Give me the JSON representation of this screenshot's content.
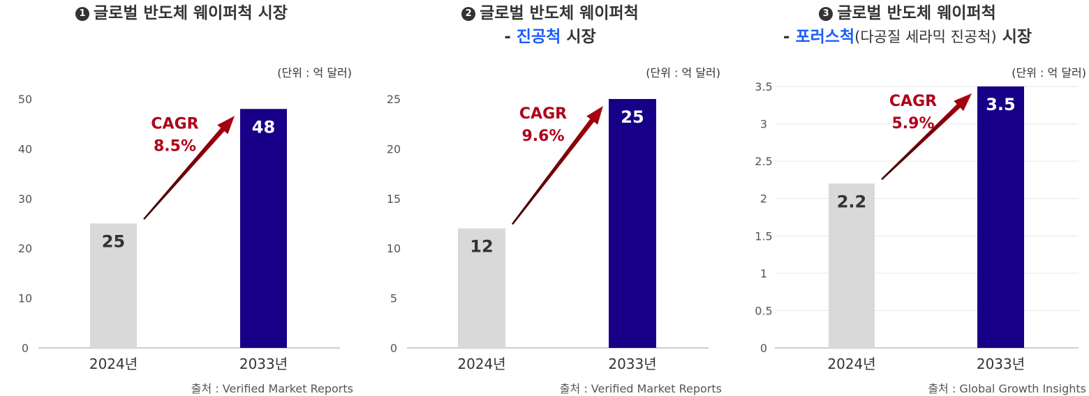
{
  "unit_label": "(단위 : 억 달러)",
  "panels": [
    {
      "badge": "1",
      "title_line1": "글로벌 반도체 웨이퍼척 시장",
      "title_line2_prefix": "",
      "title_line2_accent": "",
      "title_line2_sub": "",
      "title_line2_suffix": "",
      "source": "출처 : Verified Market Reports",
      "cagr_label": "CAGR",
      "cagr_value": "8.5%"
    },
    {
      "badge": "2",
      "title_line1": "글로벌 반도체 웨이퍼척",
      "title_line2_prefix": "- ",
      "title_line2_accent": "진공척",
      "title_line2_sub": "",
      "title_line2_suffix": " 시장",
      "source": "출처 : Verified Market Reports",
      "cagr_label": "CAGR",
      "cagr_value": "9.6%"
    },
    {
      "badge": "3",
      "title_line1": "글로벌 반도체 웨이퍼척",
      "title_line2_prefix": "- ",
      "title_line2_accent": "포러스척",
      "title_line2_sub": "(다공질 세라믹 진공척)",
      "title_line2_suffix": " 시장",
      "source": "출처 : Global Growth Insights",
      "cagr_label": "CAGR",
      "cagr_value": "5.9%"
    }
  ],
  "chart_data": [
    {
      "type": "bar",
      "title": "글로벌 반도체 웨이퍼척 시장",
      "ylabel": "(단위 : 억 달러)",
      "categories": [
        "2024년",
        "2033년"
      ],
      "values": [
        25,
        48
      ],
      "value_labels": [
        "25",
        "48"
      ],
      "ylim": [
        0,
        50
      ],
      "yticks": [
        0,
        10,
        20,
        30,
        40,
        50
      ],
      "ytick_labels": [
        "0",
        "10",
        "20",
        "30",
        "40",
        "50"
      ],
      "grid": false,
      "colors": [
        "#d9d9d9",
        "#170087"
      ],
      "cagr": "8.5%"
    },
    {
      "type": "bar",
      "title": "글로벌 반도체 웨이퍼척 - 진공척 시장",
      "ylabel": "(단위 : 억 달러)",
      "categories": [
        "2024년",
        "2033년"
      ],
      "values": [
        12,
        25
      ],
      "value_labels": [
        "12",
        "25"
      ],
      "ylim": [
        0,
        25
      ],
      "yticks": [
        0,
        5,
        10,
        15,
        20,
        25
      ],
      "ytick_labels": [
        "0",
        "5",
        "10",
        "15",
        "20",
        "25"
      ],
      "grid": false,
      "colors": [
        "#d9d9d9",
        "#170087"
      ],
      "cagr": "9.6%"
    },
    {
      "type": "bar",
      "title": "글로벌 반도체 웨이퍼척 - 포러스척(다공질 세라믹 진공척) 시장",
      "ylabel": "(단위 : 억 달러)",
      "categories": [
        "2024년",
        "2033년"
      ],
      "values": [
        2.2,
        3.5
      ],
      "value_labels": [
        "2.2",
        "3.5"
      ],
      "ylim": [
        0,
        3.5
      ],
      "yticks": [
        0,
        0.5,
        1,
        1.5,
        2,
        2.5,
        3,
        3.5
      ],
      "ytick_labels": [
        "0",
        "0.5",
        "1",
        "1.5",
        "2",
        "2.5",
        "3",
        "3.5"
      ],
      "grid": true,
      "colors": [
        "#d9d9d9",
        "#170087"
      ],
      "cagr": "5.9%"
    }
  ]
}
